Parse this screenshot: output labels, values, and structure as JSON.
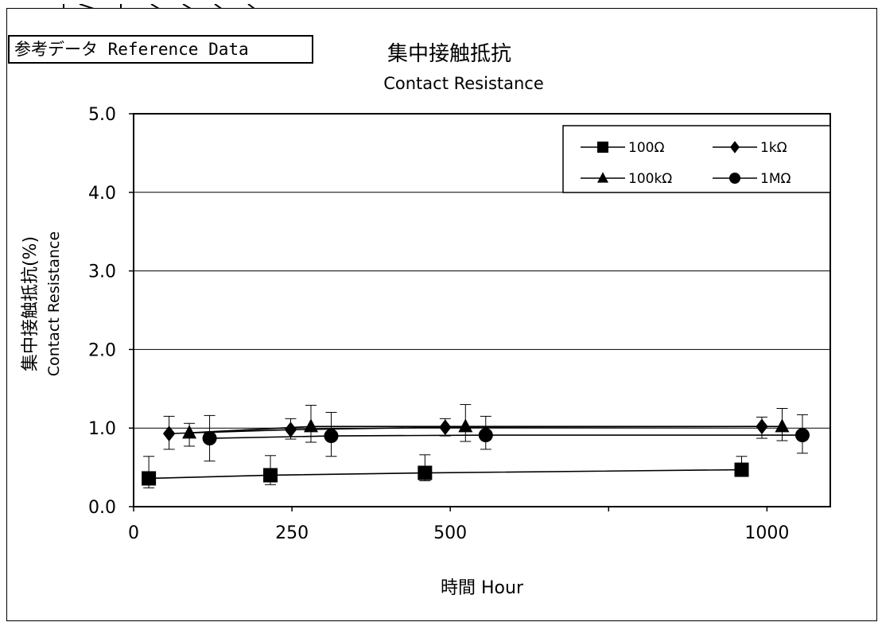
{
  "badge_text": "参考データ Reference Data",
  "chart_data": {
    "type": "line",
    "title": "集中接触抵抗",
    "subtitle": "Contact Resistance",
    "xlabel": "時間 Hour",
    "ylabel": "集中接触抵抗(%)",
    "ylabel2": "Contact Resistance",
    "xlim": [
      0,
      1100
    ],
    "ylim": [
      0,
      5
    ],
    "x_tick_labels": [
      {
        "value": 0,
        "label": "0"
      },
      {
        "value": 250,
        "label": "250"
      },
      {
        "value": 500,
        "label": "500"
      },
      {
        "value": 1000,
        "label": "1000"
      }
    ],
    "y_tick_labels": [
      "0.0",
      "1.0",
      "2.0",
      "3.0",
      "4.0",
      "5.0"
    ],
    "y_ticks": [
      0,
      1,
      2,
      3,
      4,
      5
    ],
    "grid": "horizontal",
    "legend_position": "top-right",
    "colors": {
      "line": "#000000",
      "marker": "#000000",
      "grid": "#000000"
    },
    "series": [
      {
        "name": "100Ω",
        "marker": "square",
        "x": [
          24,
          216,
          460,
          960
        ],
        "y": [
          0.36,
          0.4,
          0.43,
          0.47
        ],
        "err_low": [
          0.24,
          0.28,
          0.33,
          0.43
        ],
        "err_high": [
          0.64,
          0.65,
          0.66,
          0.64
        ]
      },
      {
        "name": "1kΩ",
        "marker": "diamond",
        "x": [
          56,
          248,
          492,
          992
        ],
        "y": [
          0.93,
          0.98,
          1.01,
          1.02
        ],
        "err_low": [
          0.73,
          0.86,
          0.9,
          0.87
        ],
        "err_high": [
          1.15,
          1.12,
          1.12,
          1.14
        ]
      },
      {
        "name": "100kΩ",
        "marker": "triangle",
        "x": [
          88,
          280,
          524,
          1024
        ],
        "y": [
          0.94,
          1.02,
          1.02,
          1.02
        ],
        "err_low": [
          0.77,
          0.82,
          0.83,
          0.84
        ],
        "err_high": [
          1.06,
          1.29,
          1.3,
          1.25
        ]
      },
      {
        "name": "1MΩ",
        "marker": "circle",
        "x": [
          120,
          312,
          556,
          1056
        ],
        "y": [
          0.87,
          0.9,
          0.91,
          0.91
        ],
        "err_low": [
          0.58,
          0.64,
          0.73,
          0.68
        ],
        "err_high": [
          1.16,
          1.2,
          1.15,
          1.17
        ]
      }
    ]
  }
}
